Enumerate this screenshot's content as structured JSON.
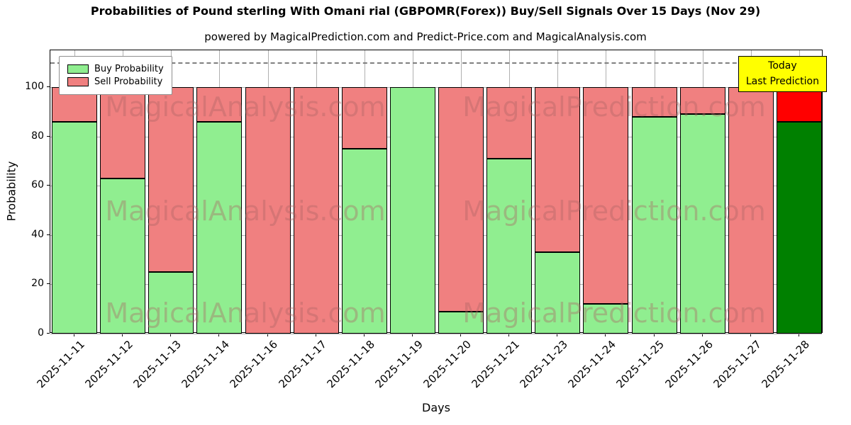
{
  "title": "Probabilities of Pound sterling With Omani rial (GBPOMR(Forex)) Buy/Sell Signals Over 15 Days (Nov 29)",
  "subtitle": "powered by MagicalPrediction.com and Predict-Price.com and MagicalAnalysis.com",
  "annotation_box": {
    "line1": "Today",
    "line2": "Last Prediction",
    "bg": "#ffff00"
  },
  "watermarks": {
    "left": "MagicalAnalysis.com",
    "right": "MagicalPrediction.com"
  },
  "chart_data": {
    "type": "bar",
    "stacked": true,
    "title": "Probabilities of Pound sterling With Omani rial (GBPOMR(Forex)) Buy/Sell Signals Over 15 Days (Nov 29)",
    "xlabel": "Days",
    "ylabel": "Probability",
    "ylim": [
      0,
      115
    ],
    "yticks": [
      0,
      20,
      40,
      60,
      80,
      100
    ],
    "grid": true,
    "legend_position": "upper-left",
    "dashed_guide_y": 110,
    "categories": [
      "2025-11-11",
      "2025-11-12",
      "2025-11-13",
      "2025-11-14",
      "2025-11-16",
      "2025-11-17",
      "2025-11-18",
      "2025-11-19",
      "2025-11-20",
      "2025-11-21",
      "2025-11-23",
      "2025-11-24",
      "2025-11-25",
      "2025-11-26",
      "2025-11-27",
      "2025-11-28"
    ],
    "series": [
      {
        "name": "Buy Probability",
        "color": "#90ee90",
        "values": [
          86,
          63,
          25,
          86,
          0,
          0,
          75,
          100,
          9,
          71,
          33,
          12,
          88,
          89,
          0,
          86
        ]
      },
      {
        "name": "Sell Probability",
        "color": "#f08080",
        "values": [
          14,
          37,
          75,
          14,
          100,
          100,
          25,
          0,
          91,
          29,
          67,
          88,
          12,
          11,
          100,
          14
        ]
      }
    ],
    "highlight_last_bar": {
      "buy_color": "#008000",
      "sell_color": "#ff0000"
    }
  }
}
